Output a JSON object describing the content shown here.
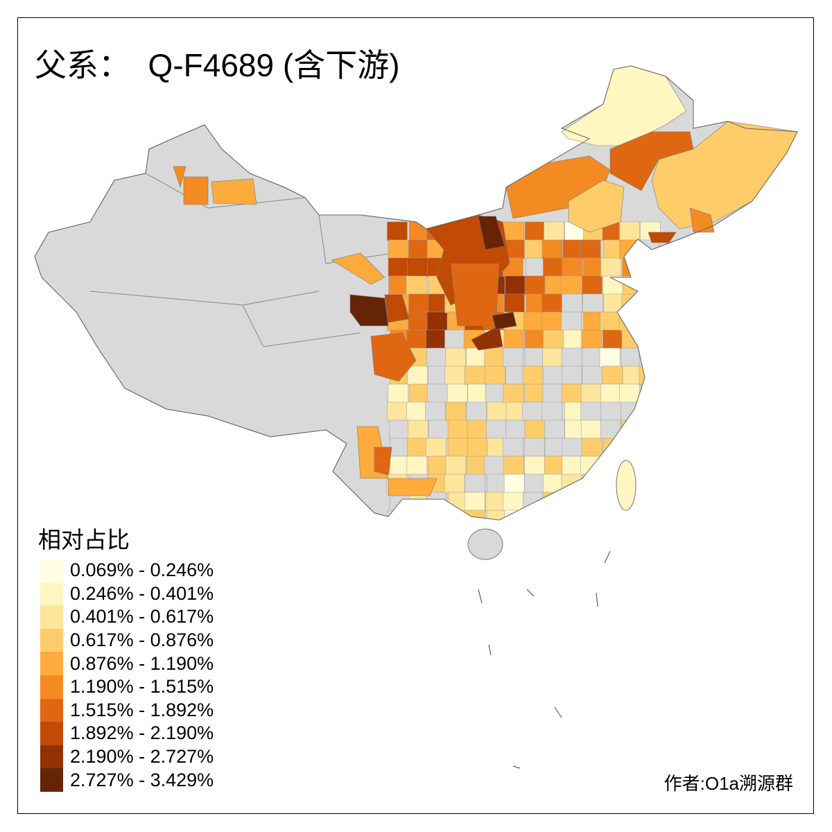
{
  "title": "父系：  Q-F4689 (含下游)",
  "legend": {
    "title": "相对占比",
    "classes": [
      {
        "label": "0.069% - 0.246%",
        "color": "#FFFDE3"
      },
      {
        "label": "0.246% - 0.401%",
        "color": "#FFF6C2"
      },
      {
        "label": "0.401% - 0.617%",
        "color": "#FEE59C"
      },
      {
        "label": "0.617% - 0.876%",
        "color": "#FECD6A"
      },
      {
        "label": "0.876% - 1.190%",
        "color": "#FDAB3C"
      },
      {
        "label": "1.190% - 1.515%",
        "color": "#F48A22"
      },
      {
        "label": "1.515% - 1.892%",
        "color": "#E06712"
      },
      {
        "label": "1.892% - 2.190%",
        "color": "#C14A05"
      },
      {
        "label": "2.190% - 2.727%",
        "color": "#933104"
      },
      {
        "label": "2.727% - 3.429%",
        "color": "#662406"
      }
    ]
  },
  "no_data_color": "#D9D9D9",
  "author": "作者:O1a溯源群"
}
